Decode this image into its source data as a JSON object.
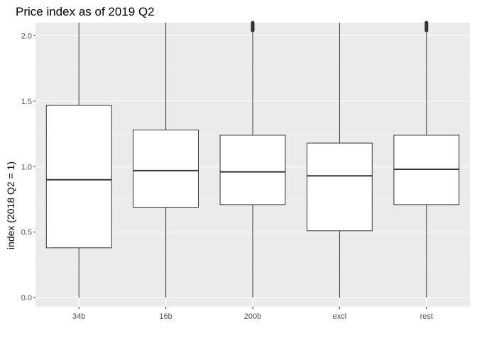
{
  "chart_data": {
    "type": "boxplot",
    "title": "Price index as of 2019 Q2",
    "xlabel": "",
    "ylabel": "index (2018 Q2 = 1)",
    "ylim": [
      -0.07,
      2.1
    ],
    "yticks": [
      0.0,
      0.5,
      1.0,
      1.5,
      2.0
    ],
    "ytick_labels": [
      "0.0",
      "0.5",
      "1.0",
      "1.5",
      "2.0"
    ],
    "categories": [
      "34b",
      "16b",
      "200b",
      "excl",
      "rest"
    ],
    "boxes": [
      {
        "category": "34b",
        "whisker_low": 0.0,
        "q1": 0.38,
        "median": 0.9,
        "q3": 1.47,
        "whisker_high": 2.1,
        "outliers_above": false
      },
      {
        "category": "16b",
        "whisker_low": 0.0,
        "q1": 0.69,
        "median": 0.97,
        "q3": 1.28,
        "whisker_high": 2.1,
        "outliers_above": false
      },
      {
        "category": "200b",
        "whisker_low": 0.0,
        "q1": 0.71,
        "median": 0.96,
        "q3": 1.24,
        "whisker_high": 2.04,
        "outliers_above": true
      },
      {
        "category": "excl",
        "whisker_low": 0.0,
        "q1": 0.51,
        "median": 0.93,
        "q3": 1.18,
        "whisker_high": 2.1,
        "outliers_above": false
      },
      {
        "category": "rest",
        "whisker_low": 0.0,
        "q1": 0.71,
        "median": 0.98,
        "q3": 1.24,
        "whisker_high": 2.04,
        "outliers_above": true
      }
    ],
    "grid": true,
    "legend": "none",
    "colors": {
      "panel_background": "#ebebeb",
      "grid_major": "#ffffff",
      "grid_minor": "#f5f5f5",
      "box_fill": "#ffffff",
      "box_stroke": "#333333",
      "tick_text": "#4d4d4d"
    }
  }
}
